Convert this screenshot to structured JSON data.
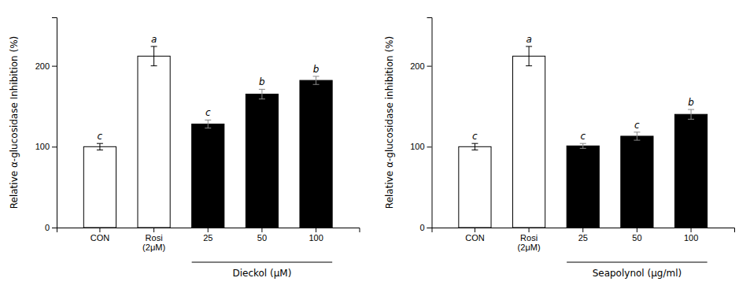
{
  "chart_data": [
    {
      "type": "bar",
      "categories": [
        "CON",
        "Rosi\n(2μM)",
        "25",
        "50",
        "100"
      ],
      "values": [
        100,
        212,
        128,
        165,
        182
      ],
      "errors": [
        4,
        12,
        5,
        6,
        5
      ],
      "colors": [
        "white",
        "white",
        "black",
        "black",
        "black"
      ],
      "annotations": [
        "c",
        "a",
        "c",
        "b",
        "b"
      ],
      "ylabel": "Relative α-glucosidase Inhibition (%)",
      "xlabel": "Dieckol (μM)",
      "xlabel_categories": [
        "25",
        "50",
        "100"
      ],
      "ylim": [
        0,
        260
      ],
      "yticks": [
        0,
        100,
        200
      ],
      "grid": false
    },
    {
      "type": "bar",
      "categories": [
        "CON",
        "Rosi\n(2μM)",
        "25",
        "50",
        "100"
      ],
      "values": [
        100,
        212,
        101,
        113,
        140
      ],
      "errors": [
        4,
        12,
        3,
        5,
        6
      ],
      "colors": [
        "white",
        "white",
        "black",
        "black",
        "black"
      ],
      "annotations": [
        "c",
        "a",
        "c",
        "c",
        "b"
      ],
      "ylabel": "Relative α-glucosidase inhibition (%)",
      "xlabel": "Seapolynol (μg/ml)",
      "xlabel_categories": [
        "25",
        "50",
        "100"
      ],
      "ylim": [
        0,
        260
      ],
      "yticks": [
        0,
        100,
        200
      ],
      "grid": false
    }
  ]
}
